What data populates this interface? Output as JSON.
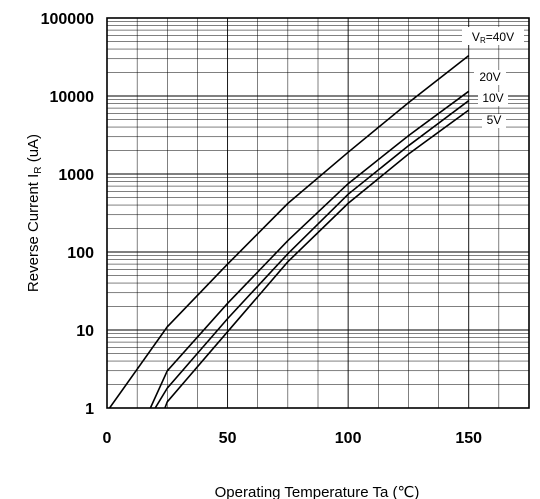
{
  "chart_data": {
    "type": "line",
    "title": "",
    "xlabel": "Operating Temperature   Ta (℃)",
    "ylabel_main": "Reverse Current  I",
    "ylabel_sub": "R",
    "ylabel_unit": " (uA)",
    "xlim": [
      0,
      175
    ],
    "ylim": [
      1,
      100000
    ],
    "yscale": "log",
    "xticks": [
      0,
      50,
      100,
      150
    ],
    "xtick_labels": [
      "0",
      "50",
      "100",
      "150"
    ],
    "yticks": [
      1,
      10,
      100,
      1000,
      10000,
      100000
    ],
    "ytick_labels": [
      "1",
      "10",
      "100",
      "1000",
      "10000",
      "100000"
    ],
    "x_minor_step": 12.5,
    "grid": true,
    "legend": "none",
    "series": [
      {
        "name": "V_R=40V",
        "label_main": "V",
        "label_sub": "R",
        "label_rest": "=40V",
        "x": [
          0,
          25,
          50,
          75,
          100,
          125,
          150
        ],
        "y": [
          0.9,
          11,
          70,
          420,
          1900,
          8200,
          33000
        ]
      },
      {
        "name": "20V",
        "label_main": "20V",
        "label_sub": "",
        "label_rest": "",
        "x": [
          18,
          25,
          50,
          75,
          100,
          125,
          150
        ],
        "y": [
          1,
          3,
          22,
          140,
          750,
          3100,
          11500
        ]
      },
      {
        "name": "10V",
        "label_main": "10V",
        "label_sub": "",
        "label_rest": "",
        "x": [
          20,
          25,
          50,
          75,
          100,
          125,
          150
        ],
        "y": [
          1,
          1.8,
          14,
          95,
          550,
          2300,
          8700
        ]
      },
      {
        "name": "5V",
        "label_main": "5V",
        "label_sub": "",
        "label_rest": "",
        "x": [
          24,
          25,
          50,
          75,
          100,
          125,
          150
        ],
        "y": [
          1,
          1.2,
          9.5,
          75,
          420,
          1800,
          6600
        ]
      }
    ]
  }
}
